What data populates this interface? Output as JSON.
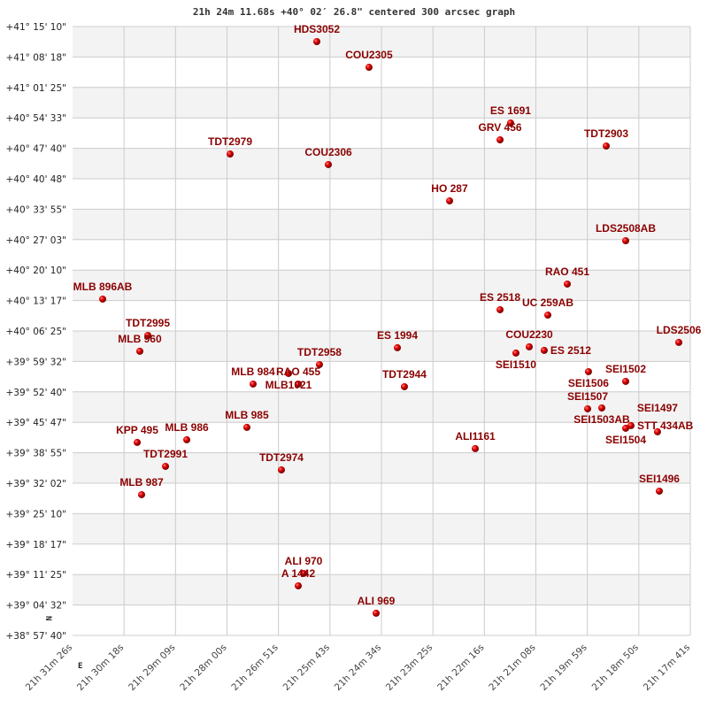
{
  "chart_data": {
    "type": "scatter",
    "title": "21h 24m 11.68s +40° 02′ 26.8\" centered 300 arcsec graph",
    "xlim": [
      "21h 31m 26s",
      "21h 17m 41s"
    ],
    "ylim": [
      "+38° 57' 40\"",
      "+41° 15' 10\""
    ],
    "x_tick_labels": [
      "21h 31m 26s",
      "21h 30m 18s",
      "21h 29m 09s",
      "21h 28m 00s",
      "21h 26m 51s",
      "21h 25m 43s",
      "21h 24m 34s",
      "21h 23m 25s",
      "21h 22m 16s",
      "21h 21m 08s",
      "21h 19m 59s",
      "21h 18m 50s",
      "21h 17m 41s"
    ],
    "y_tick_labels": [
      "+41° 15' 10\"",
      "+41° 08' 18\"",
      "+41° 01' 25\"",
      "+40° 54' 33\"",
      "+40° 47' 40\"",
      "+40° 40' 48\"",
      "+40° 33' 55\"",
      "+40° 27' 03\"",
      "+40° 20' 10\"",
      "+40° 13' 17\"",
      "+40° 06' 25\"",
      "+39° 59' 32\"",
      "+39° 52' 40\"",
      "+39° 45' 47\"",
      "+39° 38' 55\"",
      "+39° 32' 02\"",
      "+39° 25' 10\"",
      "+39° 18' 17\"",
      "+39° 11' 25\"",
      "+39° 04' 32\"",
      "+38° 57' 40\""
    ],
    "grid": true,
    "compass": {
      "north": "N",
      "east": "E"
    },
    "colors": {
      "point": "#dd0000",
      "label": "#8b0000",
      "band": "#f3f3f3",
      "grid": "#cccccc"
    },
    "points": [
      {
        "name": "HDS3052",
        "ra": "21h 25m 59.8s",
        "dec": "+41° 11' 46\""
      },
      {
        "name": "COU2305",
        "ra": "21h 24m 50.1s",
        "dec": "+41° 05' 58\""
      },
      {
        "name": "ES 1691",
        "ra": "21h 21m 41.0s",
        "dec": "+40° 53' 23\""
      },
      {
        "name": "GRV 456",
        "ra": "21h 21m 55.1s",
        "dec": "+40° 49' 35\""
      },
      {
        "name": "TDT2903",
        "ra": "21h 19m 33.3s",
        "dec": "+40° 48' 11\""
      },
      {
        "name": "TDT2979",
        "ra": "21h 27m 55.6s",
        "dec": "+40° 46' 23\""
      },
      {
        "name": "COU2306",
        "ra": "21h 25m 44.4s",
        "dec": "+40° 44' 00\""
      },
      {
        "name": "HO  287",
        "ra": "21h 23m 02.5s",
        "dec": "+40° 35' 48\""
      },
      {
        "name": "LDS2508AB",
        "ra": "21h 19m 07.3s",
        "dec": "+40° 26' 48\""
      },
      {
        "name": "RAO 451",
        "ra": "21h 20m 25.3s",
        "dec": "+40° 17' 01\""
      },
      {
        "name": "MLB 896AB",
        "ra": "21h 30m 45.8s",
        "dec": "+40° 13' 37\""
      },
      {
        "name": "ES 2518",
        "ra": "21h 21m 55.1s",
        "dec": "+40° 11' 13\""
      },
      {
        "name": "UC  259AB",
        "ra": "21h 20m 51.3s",
        "dec": "+40° 10' 01\""
      },
      {
        "name": "TDT2995",
        "ra": "21h 29m 45.5s",
        "dec": "+40° 05' 25\""
      },
      {
        "name": "LDS2506",
        "ra": "21h 17m 56.4s",
        "dec": "+40° 03' 50\""
      },
      {
        "name": "ES 1994",
        "ra": "21h 24m 12.2s",
        "dec": "+40° 02' 38\""
      },
      {
        "name": "MLB 960",
        "ra": "21h 29m 56.2s",
        "dec": "+40° 01' 50\""
      },
      {
        "name": "COU2230",
        "ra": "21h 21m 16.1s",
        "dec": "+40° 02' 50\""
      },
      {
        "name": "SEI1510",
        "ra": "21h 21m 33.9s",
        "dec": "+40° 01' 26\""
      },
      {
        "name": "ES 2512",
        "ra": "21h 20m 56.1s",
        "dec": "+40° 02' 02\""
      },
      {
        "name": "TDT2958",
        "ra": "21h 25m 56.3s",
        "dec": "+39° 58' 50\""
      },
      {
        "name": "MLB1021",
        "ra": "21h 26m 37.6s",
        "dec": "+39° 56' 50\""
      },
      {
        "name": "SEI1506",
        "ra": "21h 19m 57.0s",
        "dec": "+39° 57' 14\""
      },
      {
        "name": "RAO 455",
        "ra": "21h 26m 24.6s",
        "dec": "+39° 54' 26\""
      },
      {
        "name": "MLB 984",
        "ra": "21h 27m 24.9s",
        "dec": "+39° 54' 26\""
      },
      {
        "name": "SEI1502",
        "ra": "21h 19m 07.3s",
        "dec": "+39° 55' 02\""
      },
      {
        "name": "TDT2944",
        "ra": "21h 24m 02.8s",
        "dec": "+39° 53' 50\""
      },
      {
        "name": "SEI1507",
        "ra": "21h 19m 58.1s",
        "dec": "+39° 48' 50\""
      },
      {
        "name": "SEI1503AB",
        "ra": "21h 19m 39.2s",
        "dec": "+39° 49' 02\""
      },
      {
        "name": "SEI1504",
        "ra": "21h 19m 07.3s",
        "dec": "+39° 44' 27\""
      },
      {
        "name": "STT 434AB",
        "ra": "21h 19m 00.2s",
        "dec": "+39° 45' 03\""
      },
      {
        "name": "SEI1497",
        "ra": "21h 18m 24.8s",
        "dec": "+39° 43' 39\""
      },
      {
        "name": "MLB 985",
        "ra": "21h 27m 33.2s",
        "dec": "+39° 44' 39\""
      },
      {
        "name": "KPP 495",
        "ra": "21h 29m 59.7s",
        "dec": "+39° 41' 15\""
      },
      {
        "name": "MLB 986",
        "ra": "21h 28m 53.5s",
        "dec": "+39° 41' 51\""
      },
      {
        "name": "ALI1161",
        "ra": "21h 22m 28.2s",
        "dec": "+39° 39' 51\""
      },
      {
        "name": "TDT2991",
        "ra": "21h 29m 21.9s",
        "dec": "+39° 35' 51\""
      },
      {
        "name": "TDT2974",
        "ra": "21h 26m 47.1s",
        "dec": "+39° 35' 03\""
      },
      {
        "name": "MLB 987",
        "ra": "21h 29m 53.8s",
        "dec": "+39° 29' 27\""
      },
      {
        "name": "SEI1496",
        "ra": "21h 18m 22.4s",
        "dec": "+39° 30' 15\""
      },
      {
        "name": "ALI 970",
        "ra": "21h 26m 17.5s",
        "dec": "+39° 11' 40\""
      },
      {
        "name": "A  1442",
        "ra": "21h 26m 24.6s",
        "dec": "+39° 08' 52\""
      },
      {
        "name": "ALI 969",
        "ra": "21h 24m 40.6s",
        "dec": "+39° 02' 41\""
      }
    ]
  }
}
